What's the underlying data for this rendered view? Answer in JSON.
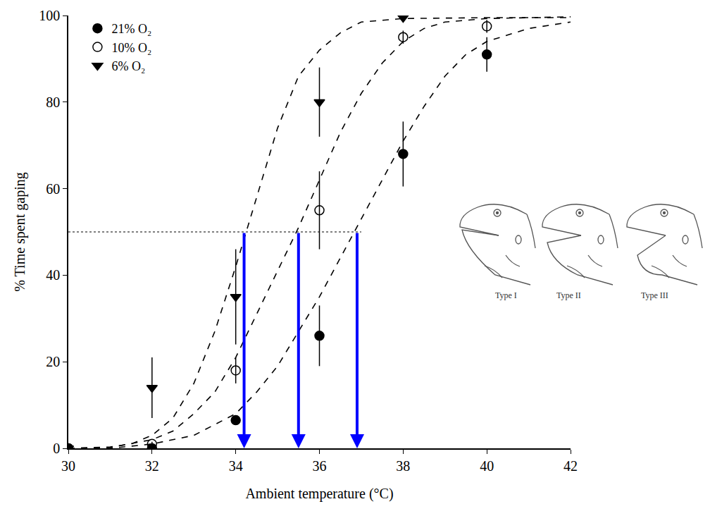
{
  "chart_data": {
    "type": "scatter",
    "x_label": "Ambient temperature (°C)",
    "y_label": "% Time spent gaping",
    "xlim": [
      30,
      42
    ],
    "ylim": [
      0,
      100
    ],
    "xticks": [
      30,
      32,
      34,
      36,
      38,
      40,
      42
    ],
    "yticks": [
      0,
      20,
      40,
      60,
      80,
      100
    ],
    "grid": false,
    "legend": "top-left",
    "series": [
      {
        "name": "21% O₂",
        "color": "#000000",
        "marker": "circle",
        "x": [
          30,
          32,
          34,
          36,
          38,
          40
        ],
        "values": [
          0,
          0,
          6.5,
          26,
          68,
          91
        ],
        "error": [
          0,
          0,
          1,
          7,
          7.5,
          4
        ],
        "fit": {
          "line_style": "dash",
          "x": [
            30,
            31,
            32,
            33,
            34,
            34.5,
            35,
            35.5,
            36,
            36.5,
            37,
            37.5,
            38,
            38.5,
            39,
            39.5,
            40,
            41,
            42
          ],
          "values": [
            0,
            0,
            1,
            3,
            8,
            13,
            19,
            27,
            35,
            44,
            53,
            62,
            71,
            79,
            86,
            91,
            94,
            97,
            98.5
          ]
        }
      },
      {
        "name": "10% O₂",
        "color": "#000000",
        "marker": "circle-open",
        "x": [
          30,
          32,
          34,
          36,
          38,
          40
        ],
        "values": [
          0,
          1,
          18,
          55,
          95,
          97.5
        ],
        "error": [
          0,
          0.5,
          3,
          9,
          1.5,
          1.5
        ],
        "fit": {
          "line_style": "dash",
          "x": [
            30,
            31,
            32,
            32.5,
            33,
            33.5,
            34,
            34.5,
            35,
            35.5,
            36,
            36.5,
            37,
            37.5,
            38,
            38.5,
            39,
            40,
            42
          ],
          "values": [
            0,
            0.2,
            2,
            4,
            8,
            13,
            21,
            31,
            41,
            51,
            62,
            73,
            82,
            89,
            94,
            97,
            98.5,
            99.3,
            99.7
          ]
        }
      },
      {
        "name": "6% O₂",
        "color": "#000000",
        "marker": "triangle-down",
        "x": [
          30,
          32,
          34,
          36,
          38
        ],
        "values": [
          0,
          14,
          35,
          80,
          99.5
        ],
        "error": [
          0,
          7,
          11,
          8,
          0.5
        ],
        "fit": {
          "line_style": "dash",
          "x": [
            30,
            31,
            31.5,
            32,
            32.5,
            33,
            33.5,
            34,
            34.5,
            35,
            35.5,
            36,
            36.5,
            37,
            38,
            40,
            42
          ],
          "values": [
            0,
            0.3,
            1,
            3,
            7,
            15,
            27,
            42,
            58,
            74,
            86,
            92,
            96,
            98.5,
            99.3,
            99.5,
            99.5
          ]
        }
      }
    ],
    "reference_line": {
      "y": 50,
      "x_from": 30,
      "x_to": 37,
      "line_style": "dot",
      "color": "#000000"
    },
    "arrows": {
      "x": [
        34.2,
        35.5,
        36.9
      ],
      "y_from": 50,
      "y_to": 0,
      "color": "#0000ff"
    },
    "figure_labels": [
      "Type I",
      "Type II",
      "Type III"
    ]
  }
}
